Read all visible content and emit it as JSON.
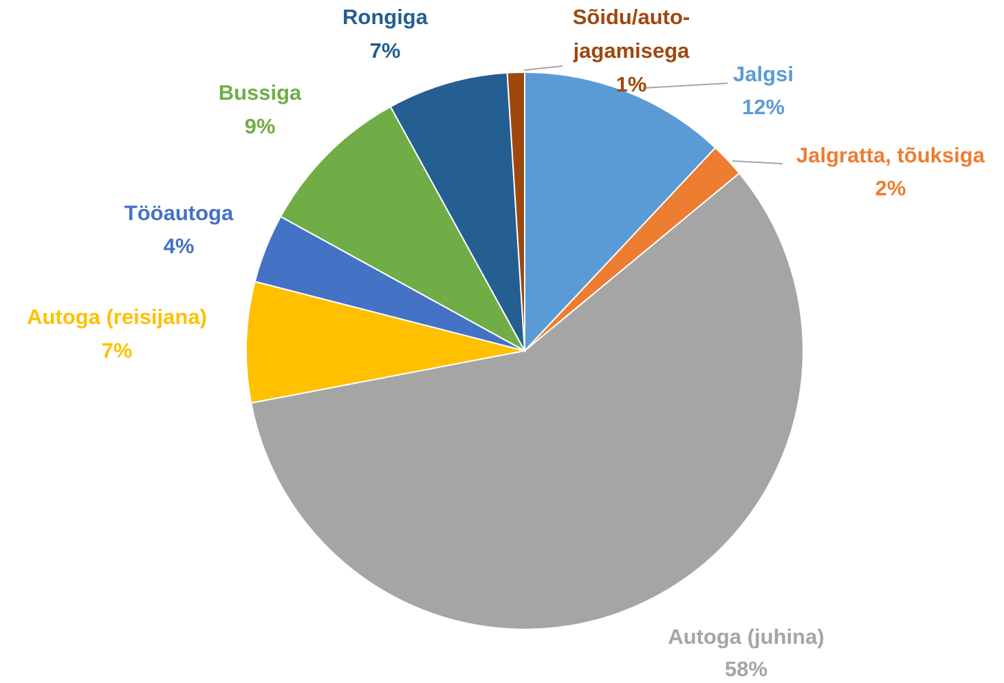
{
  "chart_data": {
    "type": "pie",
    "categories": [
      "Jalgsi",
      "Jalgratta, tõuksiga",
      "Autoga (juhina)",
      "Autoga (reisijana)",
      "Tööautoga",
      "Bussiga",
      "Rongiga",
      "Sõidu/auto-jagamisega"
    ],
    "values": [
      12,
      2,
      58,
      7,
      4,
      9,
      7,
      1
    ],
    "value_labels": [
      "12%",
      "2%",
      "58%",
      "7%",
      "4%",
      "9%",
      "7%",
      "1%"
    ],
    "colors": [
      "#5b9bd5",
      "#ed7d31",
      "#a5a5a5",
      "#ffc000",
      "#4472c4",
      "#70ad47",
      "#255e91",
      "#9e480e"
    ]
  }
}
